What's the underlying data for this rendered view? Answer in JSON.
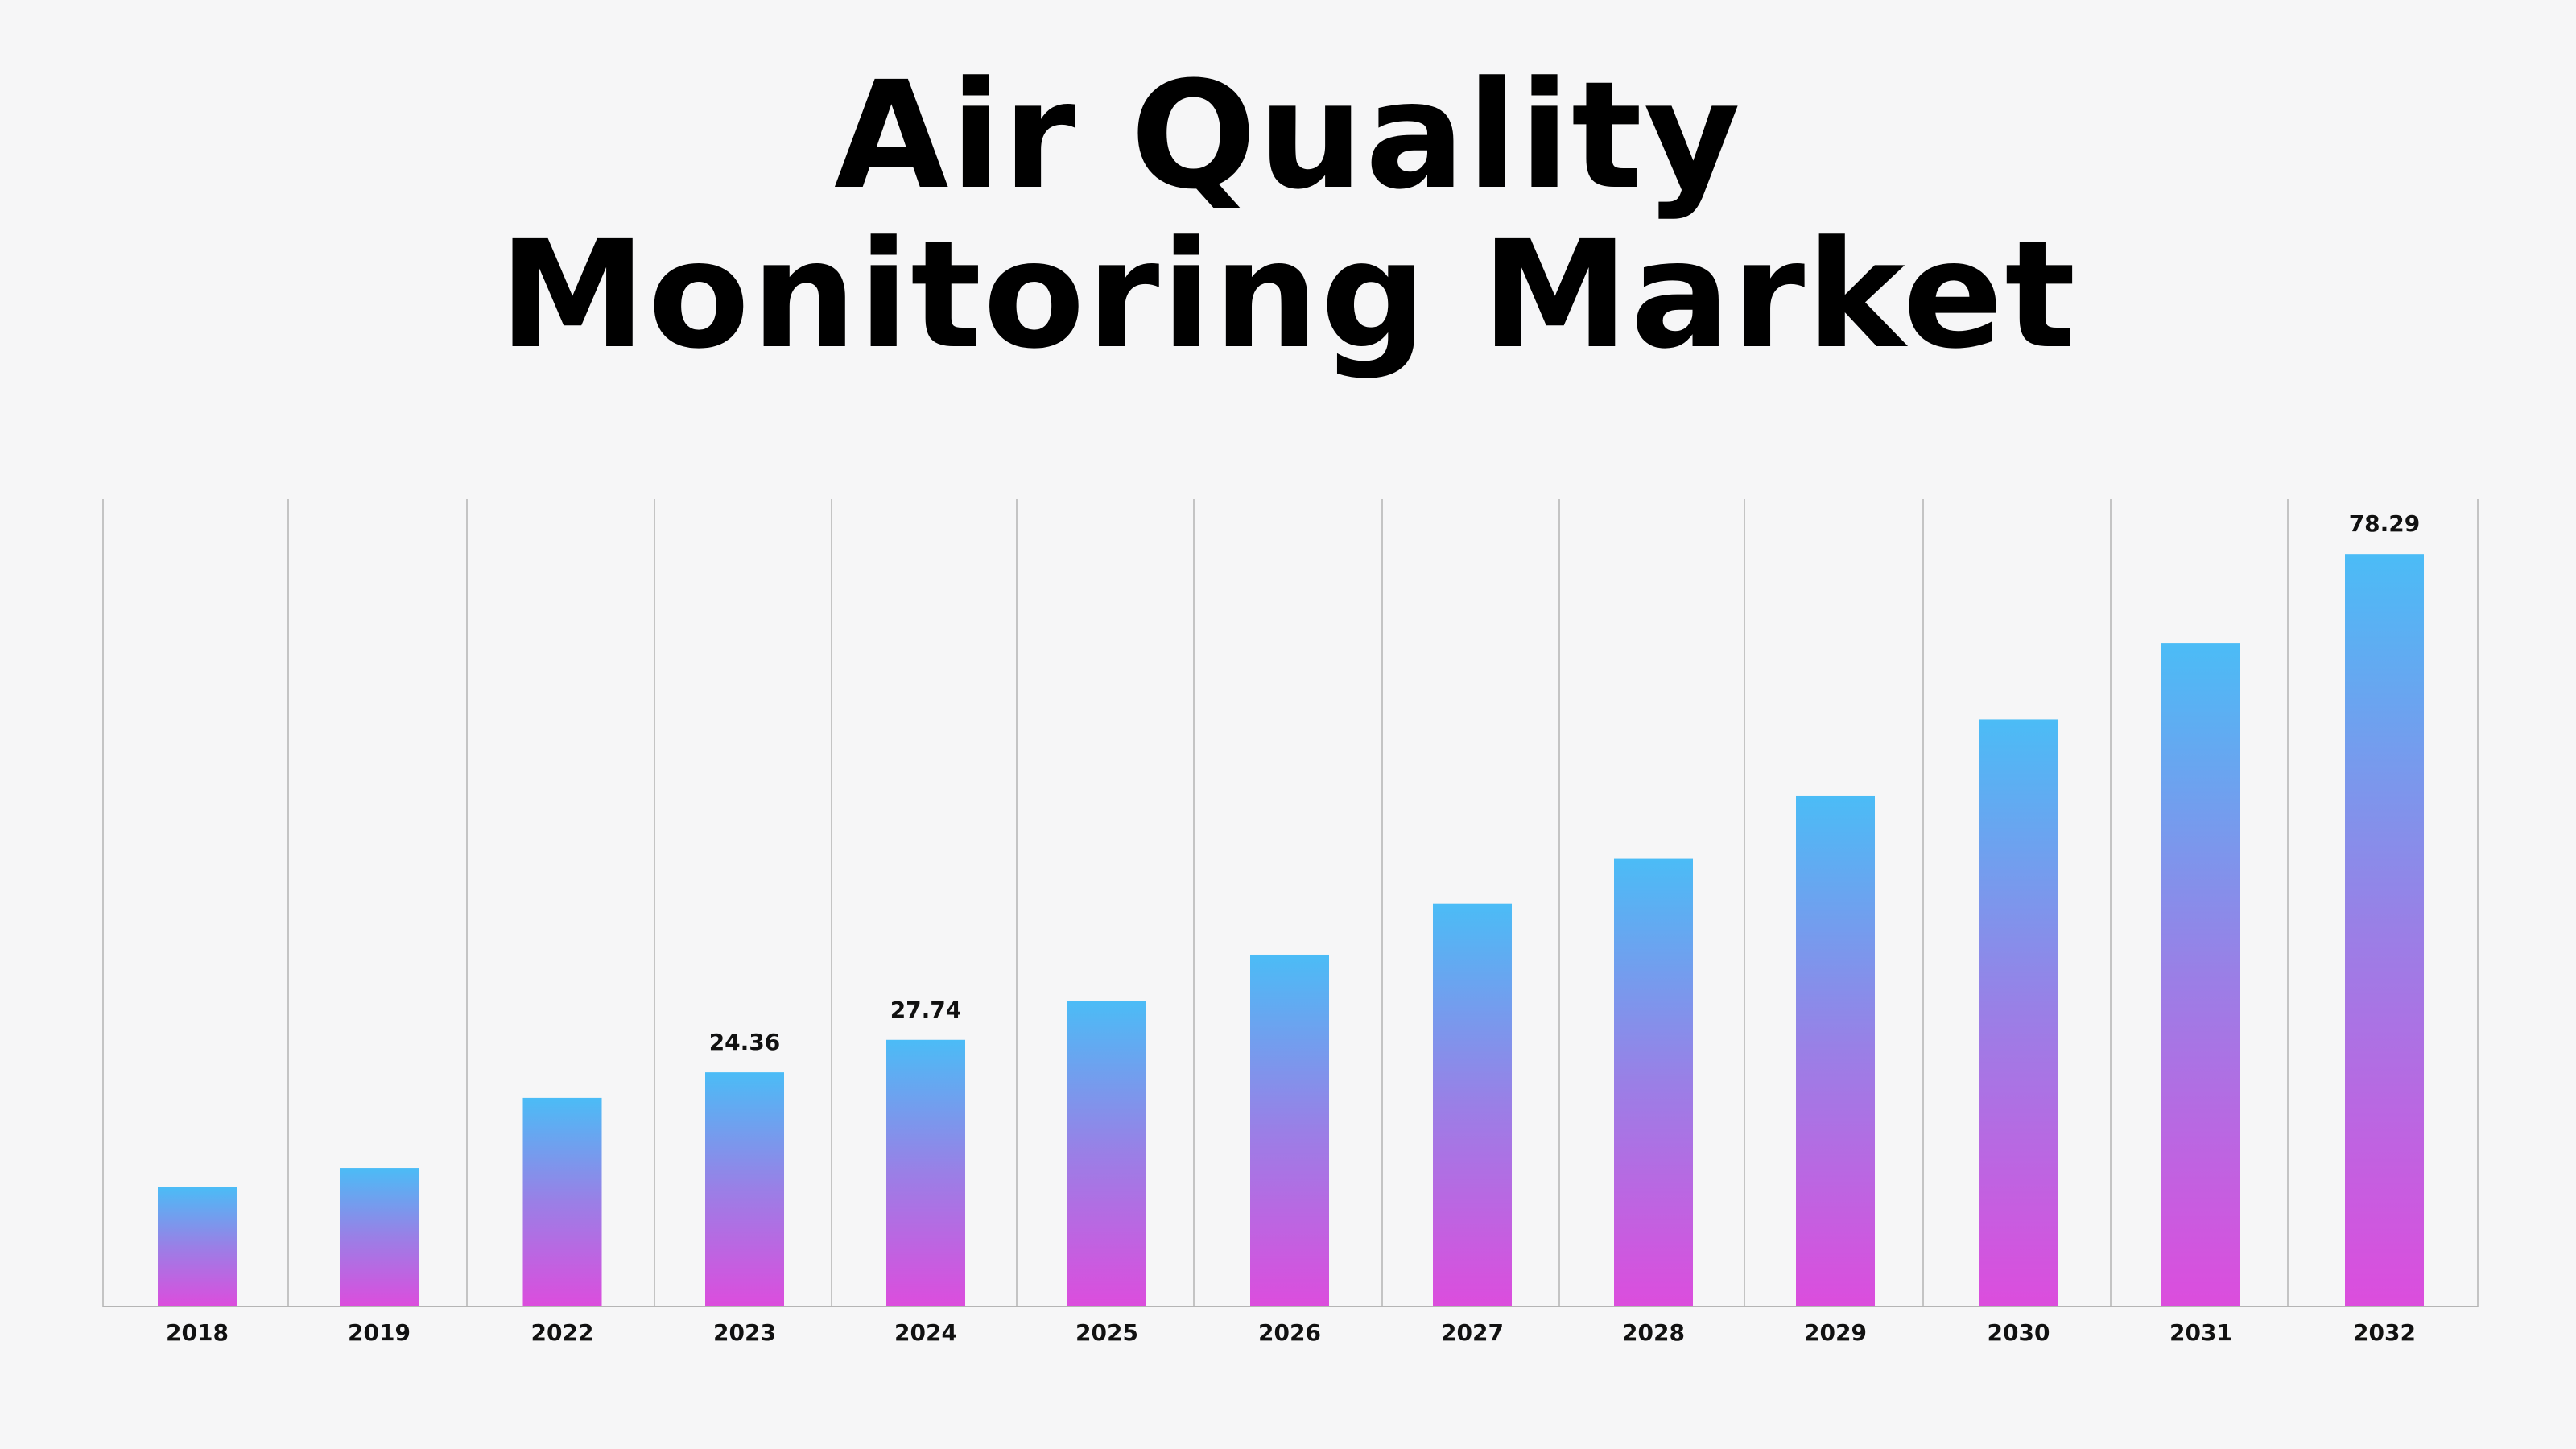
{
  "chart_data": {
    "type": "bar",
    "title_lines": [
      "Air Quality",
      "Monitoring Market"
    ],
    "xlabel": "",
    "ylabel": "",
    "categories": [
      "2018",
      "2019",
      "2022",
      "2023",
      "2024",
      "2025",
      "2026",
      "2027",
      "2028",
      "2029",
      "2030",
      "2031",
      "2032"
    ],
    "values": [
      12.4,
      14.4,
      21.7,
      24.36,
      27.74,
      31.8,
      36.6,
      41.9,
      46.6,
      53.1,
      61.1,
      69.0,
      78.29
    ],
    "data_labels": [
      {
        "index": 3,
        "text": "24.36"
      },
      {
        "index": 4,
        "text": "27.74"
      },
      {
        "index": 12,
        "text": "78.29"
      }
    ],
    "ylim": [
      0,
      84
    ],
    "grid": {
      "vertical": true,
      "horizontal": false
    },
    "legend": "none",
    "colors": {
      "bar_top": "#4bbcf6",
      "bar_mid": "#9a7fe6",
      "bar_bottom": "#dc4ddd",
      "grid": "#c4c4c4",
      "axis": "#b5b5b5",
      "text": "#111111",
      "background": "#f6f6f7"
    }
  }
}
